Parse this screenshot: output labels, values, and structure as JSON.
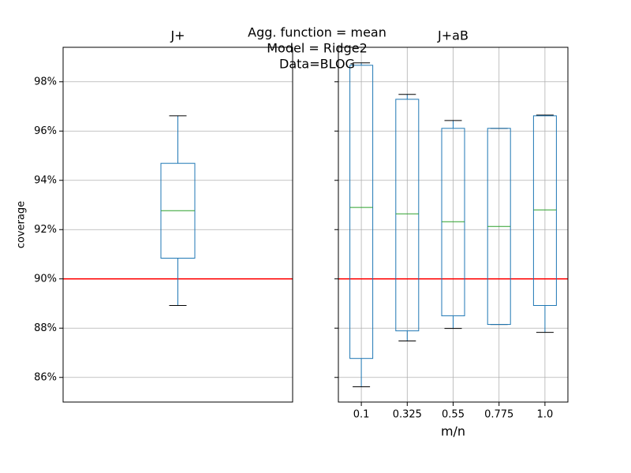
{
  "suptitle": [
    "Agg. function = mean",
    "Model = Ridge2",
    "Data=BLOG"
  ],
  "chart_data": [
    {
      "type": "box",
      "title": "J+",
      "ylabel": "coverage",
      "categories": [
        null
      ],
      "whislo": [
        88.92
      ],
      "q1": [
        90.84
      ],
      "median": [
        92.77
      ],
      "q3": [
        94.69
      ],
      "whishi": [
        96.62
      ],
      "ylim": [
        85.0,
        99.4
      ],
      "yticks": [
        {
          "value": 86,
          "label": "86%"
        },
        {
          "value": 88,
          "label": "88%"
        },
        {
          "value": 90,
          "label": "90%"
        },
        {
          "value": 92,
          "label": "92%"
        },
        {
          "value": 94,
          "label": "94%"
        },
        {
          "value": 96,
          "label": "96%"
        },
        {
          "value": 98,
          "label": "98%"
        }
      ],
      "grid": true,
      "x_grid": false,
      "box_color": "#1f77b4",
      "median_color": "#2ca02c",
      "hline": {
        "value": 90,
        "color": "#ff0000"
      }
    },
    {
      "type": "box",
      "title": "J+aB",
      "xlabel": "m/n",
      "categories": [
        "0.1",
        "0.325",
        "0.55",
        "0.775",
        "1.0"
      ],
      "whislo": [
        85.62,
        87.48,
        87.99,
        88.15,
        87.83
      ],
      "q1": [
        86.77,
        87.89,
        88.5,
        88.15,
        88.92
      ],
      "median": [
        92.9,
        92.64,
        92.32,
        92.13,
        92.8
      ],
      "q3": [
        98.67,
        97.29,
        96.11,
        96.11,
        96.62
      ],
      "whishi": [
        98.77,
        97.49,
        96.43,
        96.11,
        96.65
      ],
      "sharey": true,
      "grid": true,
      "x_grid": true,
      "box_color": "#1f77b4",
      "median_color": "#2ca02c",
      "hline": {
        "value": 90,
        "color": "#ff0000"
      }
    }
  ]
}
